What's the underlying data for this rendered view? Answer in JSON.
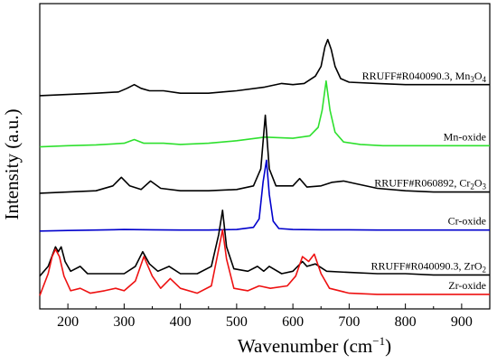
{
  "chart_data": {
    "type": "line",
    "title": "",
    "xlabel": "Wavenumber (cm",
    "xlabel_sup": "−1",
    "xlabel_end": ")",
    "ylabel": "Intensity (a.u.)",
    "xlim": [
      150,
      950
    ],
    "xticks": [
      "200",
      "300",
      "400",
      "500",
      "600",
      "700",
      "800",
      "900"
    ],
    "yticks_shown": false,
    "grid": false,
    "series": [
      {
        "name": "RRUFF#R040090.3, Mn3O4",
        "label_main": "RRUFF#R040090.3, Mn",
        "label_sub1": "3",
        "label_mid": "O",
        "label_sub2": "4",
        "color": "#000000",
        "offset": 0.83,
        "x": [
          150,
          200,
          250,
          290,
          305,
          318,
          330,
          345,
          370,
          400,
          450,
          500,
          550,
          580,
          600,
          620,
          640,
          650,
          657,
          662,
          668,
          675,
          685,
          700,
          750,
          800,
          850,
          900,
          950
        ],
        "y": [
          0,
          0.005,
          0.01,
          0.015,
          0.03,
          0.045,
          0.03,
          0.02,
          0.02,
          0.01,
          0.01,
          0.02,
          0.035,
          0.05,
          0.045,
          0.05,
          0.08,
          0.12,
          0.2,
          0.23,
          0.19,
          0.12,
          0.07,
          0.055,
          0.05,
          0.045,
          0.045,
          0.045,
          0.045
        ]
      },
      {
        "name": "Mn-oxide",
        "label_main": "Mn-oxide",
        "color": "#2ee02e",
        "offset": 0.62,
        "x": [
          150,
          200,
          250,
          300,
          318,
          335,
          370,
          400,
          450,
          500,
          550,
          600,
          630,
          645,
          652,
          659,
          666,
          675,
          690,
          720,
          760,
          800,
          850,
          900,
          950
        ],
        "y": [
          0,
          0.005,
          0.008,
          0.015,
          0.03,
          0.015,
          0.015,
          0.01,
          0.015,
          0.025,
          0.04,
          0.035,
          0.045,
          0.08,
          0.15,
          0.27,
          0.15,
          0.06,
          0.02,
          0.01,
          0.005,
          0.005,
          0.005,
          0.005,
          0.005
        ]
      },
      {
        "name": "RRUFF#R060892, Cr2O3",
        "label_main": "RRUFF#R060892, Cr",
        "label_sub1": "2",
        "label_mid": "O",
        "label_sub2": "3",
        "color": "#000000",
        "offset": 0.43,
        "x": [
          150,
          200,
          250,
          280,
          295,
          310,
          330,
          347,
          365,
          400,
          450,
          500,
          530,
          543,
          551,
          558,
          570,
          600,
          612,
          625,
          650,
          670,
          690,
          710,
          750,
          800,
          850,
          900,
          950
        ],
        "y": [
          0,
          0.005,
          0.01,
          0.03,
          0.065,
          0.03,
          0.015,
          0.05,
          0.02,
          0.01,
          0.01,
          0.015,
          0.03,
          0.1,
          0.32,
          0.1,
          0.03,
          0.03,
          0.06,
          0.025,
          0.03,
          0.045,
          0.05,
          0.04,
          0.02,
          0.01,
          0.005,
          0.005,
          0.005
        ]
      },
      {
        "name": "Cr-oxide",
        "label_main": "Cr-oxide",
        "color": "#0000cc",
        "offset": 0.275,
        "x": [
          150,
          200,
          250,
          300,
          350,
          400,
          450,
          500,
          530,
          540,
          547,
          553,
          558,
          565,
          575,
          600,
          650,
          700,
          750,
          800,
          850,
          900,
          950
        ],
        "y": [
          0,
          0.002,
          0.004,
          0.006,
          0.005,
          0.004,
          0.004,
          0.006,
          0.015,
          0.05,
          0.2,
          0.29,
          0.15,
          0.04,
          0.01,
          0.006,
          0.005,
          0.005,
          0.004,
          0.004,
          0.004,
          0.004,
          0.004
        ]
      },
      {
        "name": "RRUFF#R040090.3, ZrO2",
        "label_main": "RRUFF#R040090.3, ZrO",
        "label_sub1": "2",
        "color": "#000000",
        "offset": 0.08,
        "x": [
          150,
          165,
          178,
          183,
          188,
          195,
          205,
          222,
          235,
          260,
          300,
          320,
          333,
          345,
          360,
          380,
          400,
          430,
          455,
          468,
          475,
          482,
          495,
          520,
          537,
          548,
          558,
          580,
          600,
          617,
          625,
          640,
          660,
          700,
          750,
          800,
          850,
          900,
          950
        ],
        "y": [
          0.01,
          0.05,
          0.13,
          0.11,
          0.13,
          0.07,
          0.03,
          0.05,
          0.02,
          0.02,
          0.02,
          0.05,
          0.11,
          0.06,
          0.03,
          0.05,
          0.02,
          0.02,
          0.05,
          0.18,
          0.28,
          0.13,
          0.04,
          0.03,
          0.05,
          0.03,
          0.05,
          0.02,
          0.03,
          0.07,
          0.05,
          0.06,
          0.03,
          0.025,
          0.02,
          0.02,
          0.015,
          0.015,
          0.015
        ]
      },
      {
        "name": "Zr-oxide",
        "label_main": "Zr-oxide",
        "color": "#ee1111",
        "offset": 0.0,
        "x": [
          150,
          165,
          172,
          178,
          185,
          193,
          205,
          222,
          240,
          265,
          285,
          300,
          320,
          335,
          350,
          365,
          382,
          400,
          430,
          455,
          468,
          475,
          482,
          495,
          520,
          540,
          560,
          590,
          605,
          617,
          628,
          638,
          650,
          665,
          700,
          750,
          800,
          850,
          900,
          950
        ],
        "y": [
          0.01,
          0.1,
          0.17,
          0.2,
          0.17,
          0.09,
          0.03,
          0.04,
          0.02,
          0.03,
          0.04,
          0.03,
          0.07,
          0.17,
          0.09,
          0.04,
          0.08,
          0.04,
          0.02,
          0.05,
          0.2,
          0.28,
          0.16,
          0.04,
          0.03,
          0.05,
          0.04,
          0.05,
          0.09,
          0.17,
          0.15,
          0.18,
          0.1,
          0.04,
          0.02,
          0.015,
          0.015,
          0.015,
          0.015,
          0.015
        ]
      }
    ]
  }
}
